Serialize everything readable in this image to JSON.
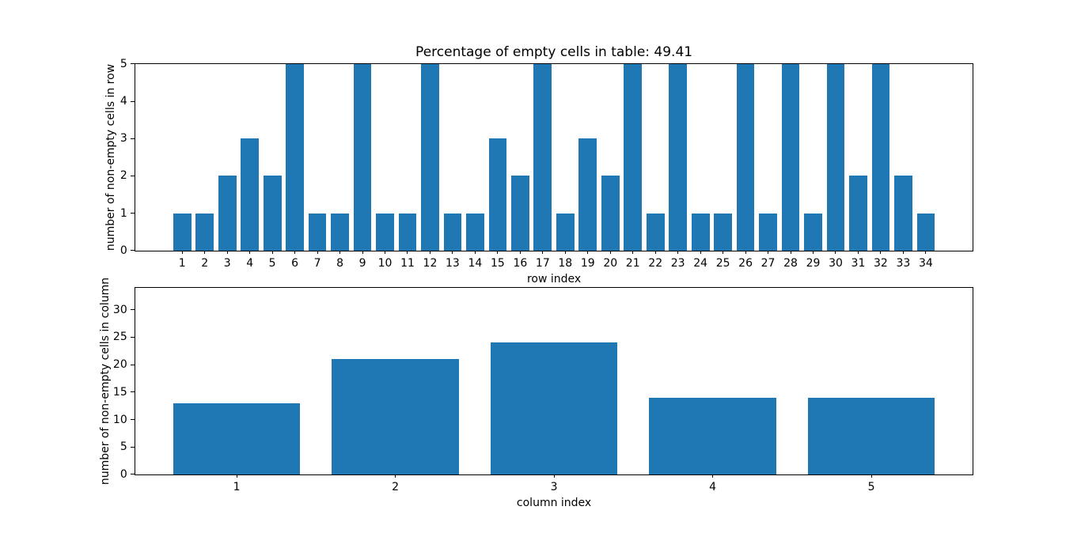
{
  "figure": {
    "background_color": "#ffffff",
    "axis_color": "#000000",
    "bar_color": "#1f77b4"
  },
  "chart_data": [
    {
      "type": "bar",
      "title": "Percentage of empty cells in table: 49.41",
      "xlabel": "row index",
      "ylabel": "number of non-empty cells in row",
      "categories": [
        1,
        2,
        3,
        4,
        5,
        6,
        7,
        8,
        9,
        10,
        11,
        12,
        13,
        14,
        15,
        16,
        17,
        18,
        19,
        20,
        21,
        22,
        23,
        24,
        25,
        26,
        27,
        28,
        29,
        30,
        31,
        32,
        33,
        34
      ],
      "values": [
        1,
        1,
        2,
        3,
        2,
        5,
        1,
        1,
        5,
        1,
        1,
        5,
        1,
        1,
        3,
        2,
        5,
        1,
        3,
        2,
        5,
        1,
        5,
        1,
        1,
        5,
        1,
        5,
        1,
        5,
        2,
        5,
        2,
        1
      ],
      "xlim": [
        -1.09,
        36.09
      ],
      "ylim": [
        0,
        5
      ],
      "yticks": [
        0,
        1,
        2,
        3,
        4,
        5
      ],
      "bar_width": 0.8,
      "bar_color": "#1f77b4",
      "grid": false,
      "legend": null
    },
    {
      "type": "bar",
      "title": "",
      "xlabel": "column index",
      "ylabel": "number of non-empty cells in column",
      "categories": [
        1,
        2,
        3,
        4,
        5
      ],
      "values": [
        13,
        21,
        24,
        14,
        14
      ],
      "xlim": [
        0.36,
        5.64
      ],
      "ylim": [
        0,
        34
      ],
      "yticks": [
        0,
        5,
        10,
        15,
        20,
        25,
        30
      ],
      "bar_width": 0.8,
      "bar_color": "#1f77b4",
      "grid": false,
      "legend": null
    }
  ]
}
